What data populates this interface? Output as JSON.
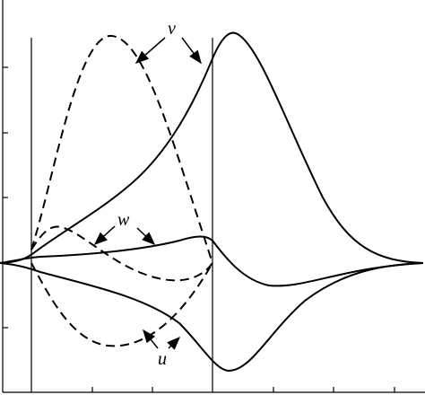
{
  "labels": {
    "v": "v",
    "w": "w",
    "u": "u"
  }
}
